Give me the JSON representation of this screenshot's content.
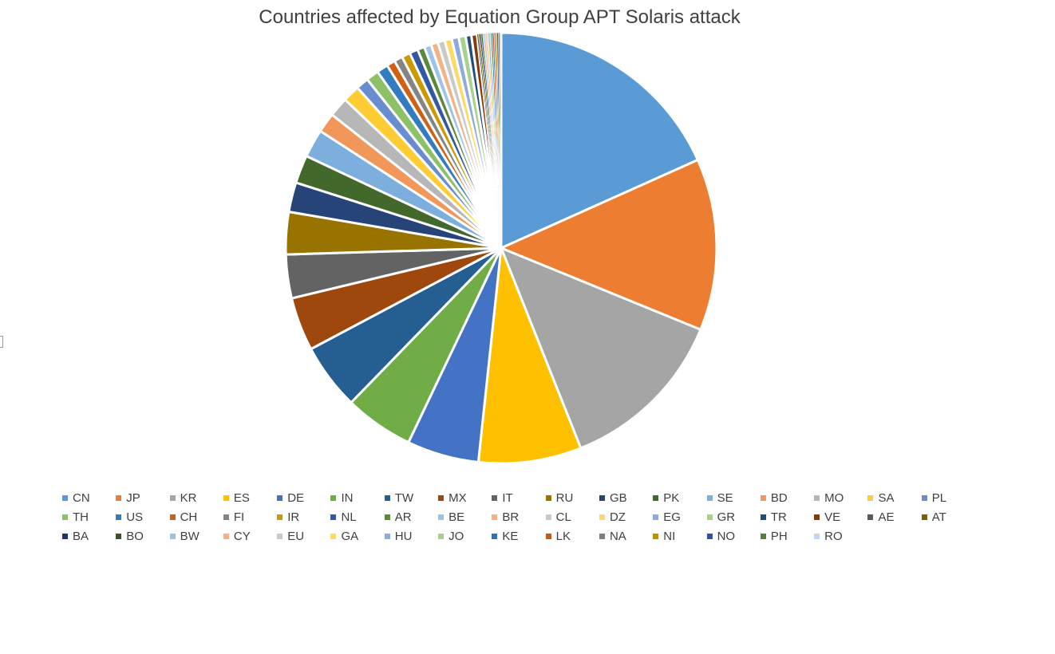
{
  "chart_data": {
    "type": "pie",
    "title": "Countries affected by Equation Group APT Solaris attack",
    "legend_position": "bottom",
    "categories": [
      "CN",
      "JP",
      "KR",
      "ES",
      "DE",
      "IN",
      "TW",
      "MX",
      "IT",
      "RU",
      "GB",
      "PK",
      "SE",
      "BD",
      "MO",
      "SA",
      "PL",
      "TH",
      "US",
      "CH",
      "FI",
      "IR",
      "NL",
      "AR",
      "BE",
      "BR",
      "CL",
      "DZ",
      "EG",
      "GR",
      "TR",
      "VE",
      "AE",
      "AT",
      "BA",
      "BO",
      "BW",
      "CY",
      "EU",
      "GA",
      "HU",
      "JO",
      "KE",
      "LK",
      "NA",
      "NI",
      "NO",
      "PH",
      "RO"
    ],
    "values": [
      17.3,
      12.2,
      12.1,
      7.3,
      5.1,
      4.9,
      4.7,
      3.8,
      3.1,
      3.0,
      2.1,
      2.0,
      2.0,
      1.4,
      1.4,
      1.2,
      0.9,
      0.9,
      0.8,
      0.6,
      0.6,
      0.6,
      0.6,
      0.5,
      0.5,
      0.5,
      0.5,
      0.5,
      0.5,
      0.5,
      0.4,
      0.4,
      0.1,
      0.1,
      0.1,
      0.1,
      0.1,
      0.1,
      0.1,
      0.1,
      0.1,
      0.1,
      0.1,
      0.1,
      0.1,
      0.1,
      0.1,
      0.1,
      0.1
    ],
    "colors": [
      "#5B9BD5",
      "#ED7D31",
      "#A5A5A5",
      "#FFC000",
      "#4472C4",
      "#70AD47",
      "#255E91",
      "#9E480E",
      "#636363",
      "#997300",
      "#264478",
      "#43682B",
      "#7CAFDD",
      "#F1975A",
      "#B7B7B7",
      "#FFCD33",
      "#698ED0",
      "#8CC168",
      "#327DC2",
      "#D26012",
      "#848484",
      "#CC9A00",
      "#335AA1",
      "#5A8A39",
      "#9DC3E6",
      "#F4B183",
      "#C9C9C9",
      "#FFD966",
      "#8FAADC",
      "#A9D18E",
      "#1F4E79",
      "#843C0C",
      "#595959",
      "#7F6000",
      "#203864",
      "#385723",
      "#9DC3E6",
      "#F4B183",
      "#C9C9C9",
      "#FFD966",
      "#8FAADC",
      "#A9D18E",
      "#2E75B6",
      "#C55A11",
      "#7F7F7F",
      "#BF9000",
      "#2F5597",
      "#548235",
      "#BDD7EE"
    ]
  }
}
